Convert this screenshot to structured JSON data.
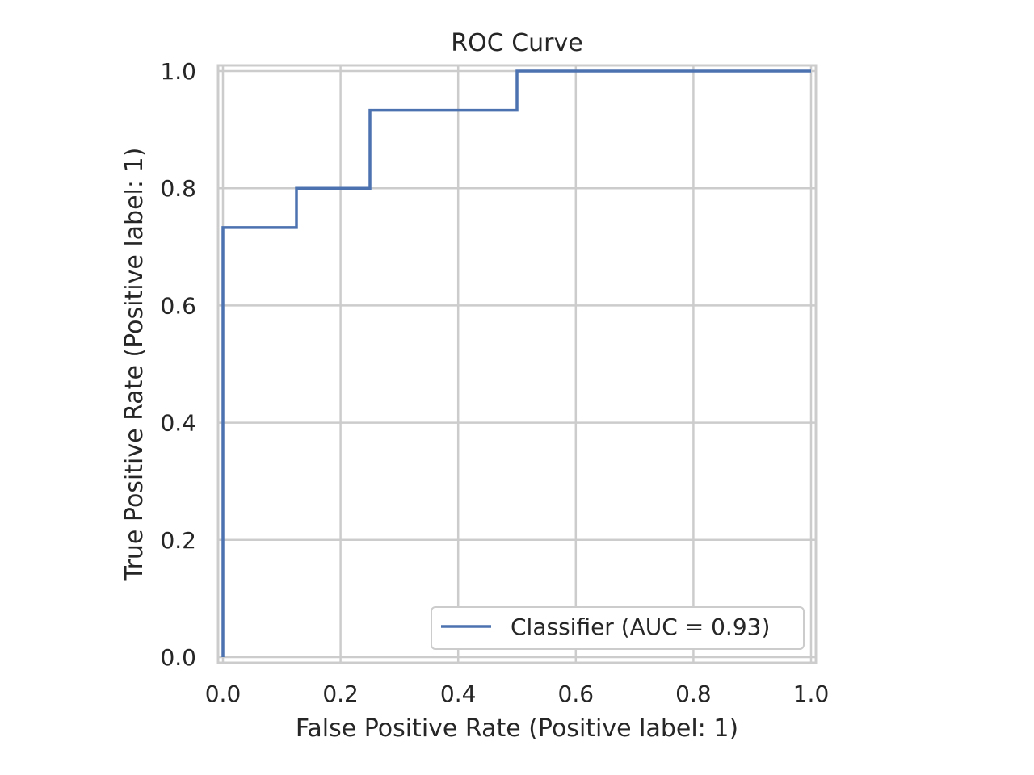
{
  "chart_data": {
    "type": "line",
    "title": "ROC Curve",
    "xlabel": "False Positive Rate (Positive label: 1)",
    "ylabel": "True Positive Rate (Positive label: 1)",
    "xlim": [
      0.0,
      1.0
    ],
    "ylim": [
      0.0,
      1.0
    ],
    "xticks": [
      "0.0",
      "0.2",
      "0.4",
      "0.6",
      "0.8",
      "1.0"
    ],
    "yticks": [
      "0.0",
      "0.2",
      "0.4",
      "0.6",
      "0.8",
      "1.0"
    ],
    "grid": true,
    "legend_position": "lower-right",
    "series": [
      {
        "name": "Classifier (AUC = 0.93)",
        "color": "#4c72b0",
        "step": true,
        "points": [
          [
            0.0,
            0.0
          ],
          [
            0.0,
            0.733
          ],
          [
            0.125,
            0.733
          ],
          [
            0.125,
            0.8
          ],
          [
            0.25,
            0.8
          ],
          [
            0.25,
            0.933
          ],
          [
            0.5,
            0.933
          ],
          [
            0.5,
            1.0
          ],
          [
            1.0,
            1.0
          ]
        ]
      }
    ]
  }
}
